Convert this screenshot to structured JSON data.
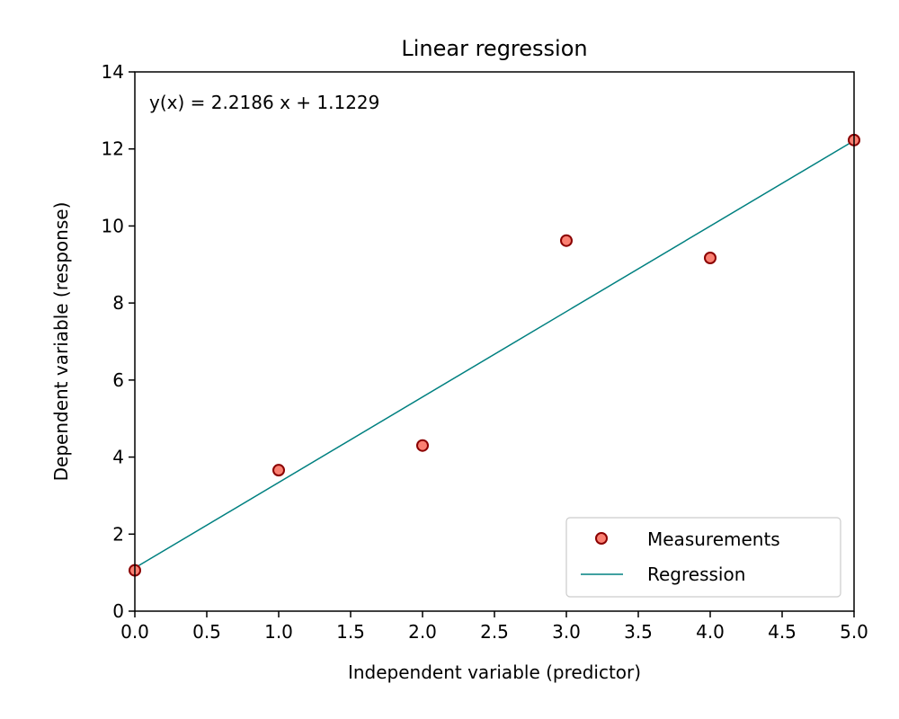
{
  "chart_data": {
    "type": "scatter",
    "title": "Linear regression",
    "xlabel": "Independent variable (predictor)",
    "ylabel": "Dependent variable (response)",
    "xlim": [
      0,
      5
    ],
    "ylim": [
      0,
      14
    ],
    "xticks": [
      0.0,
      0.5,
      1.0,
      1.5,
      2.0,
      2.5,
      3.0,
      3.5,
      4.0,
      4.5,
      5.0
    ],
    "xtick_labels": [
      "0.0",
      "0.5",
      "1.0",
      "1.5",
      "2.0",
      "2.5",
      "3.0",
      "3.5",
      "4.0",
      "4.5",
      "5.0"
    ],
    "yticks": [
      0,
      2,
      4,
      6,
      8,
      10,
      12,
      14
    ],
    "ytick_labels": [
      "0",
      "2",
      "4",
      "6",
      "8",
      "10",
      "12",
      "14"
    ],
    "grid": false,
    "legend_position": "bottom-right",
    "annotation": "y(x) = 2.2186 x + 1.1229",
    "series": [
      {
        "name": "Measurements",
        "kind": "scatter",
        "color": "#fa8072",
        "edge_color": "#8b0000",
        "x": [
          0,
          1,
          2,
          3,
          4,
          5
        ],
        "y": [
          1.06,
          3.66,
          4.3,
          9.62,
          9.17,
          12.23
        ]
      },
      {
        "name": "Regression",
        "kind": "line",
        "color": "#008080",
        "slope": 2.2186,
        "intercept": 1.1229
      }
    ]
  }
}
